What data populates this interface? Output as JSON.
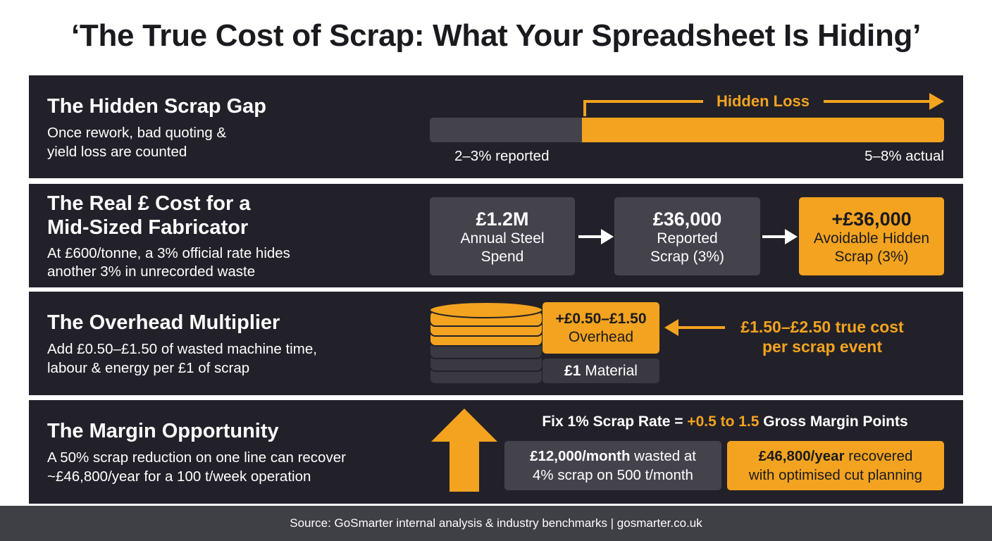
{
  "title": "‘The True Cost of Scrap: What Your Spreadsheet Is Hiding’",
  "colors": {
    "accent": "#f3a31f",
    "panel": "#222129",
    "box": "#44434c",
    "footer": "#3f3f46"
  },
  "gap": {
    "title": "The Hidden Scrap Gap",
    "desc1": "Once rework, bad quoting &",
    "desc2": "yield loss are counted",
    "hidden_label": "Hidden Loss",
    "reported_label": "2–3% reported",
    "actual_label": "5–8% actual"
  },
  "real": {
    "title1": "The Real £ Cost for a",
    "title2": "Mid-Sized Fabricator",
    "desc1": "At £600/tonne, a 3% official rate hides",
    "desc2": "another 3% in unrecorded waste",
    "boxes": [
      {
        "value": "£1.2M",
        "line1": "Annual Steel",
        "line2": "Spend"
      },
      {
        "value": "£36,000",
        "line1": "Reported",
        "line2": "Scrap (3%)"
      },
      {
        "value": "+£36,000",
        "line1": "Avoidable Hidden",
        "line2": "Scrap (3%)"
      }
    ]
  },
  "overhead": {
    "title": "The Overhead Multiplier",
    "desc1": "Add £0.50–£1.50 of wasted machine time,",
    "desc2": "labour & energy per £1 of scrap",
    "overhead_value": "+£0.50–£1.50",
    "overhead_label": "Overhead",
    "material_value": "£1",
    "material_label": "Material",
    "callout1": "£1.50–£2.50 true cost",
    "callout2": "per scrap event"
  },
  "margin": {
    "title": "The Margin Opportunity",
    "desc1": "A 50% scrap reduction on one line can recover",
    "desc2": "~£46,800/year for a 100 t/week operation",
    "fix_pre": "Fix 1% Scrap Rate = ",
    "fix_accent": "+0.5 to 1.5",
    "fix_post": " Gross Margin Points",
    "box1_bold": "£12,000/month",
    "box1_rest": " wasted at",
    "box1_line2": "4% scrap on 500 t/month",
    "box2_bold": "£46,800/year",
    "box2_rest": " recovered",
    "box2_line2": "with optimised cut planning"
  },
  "footer": "Source: GoSmarter internal analysis & industry benchmarks | gosmarter.co.uk"
}
